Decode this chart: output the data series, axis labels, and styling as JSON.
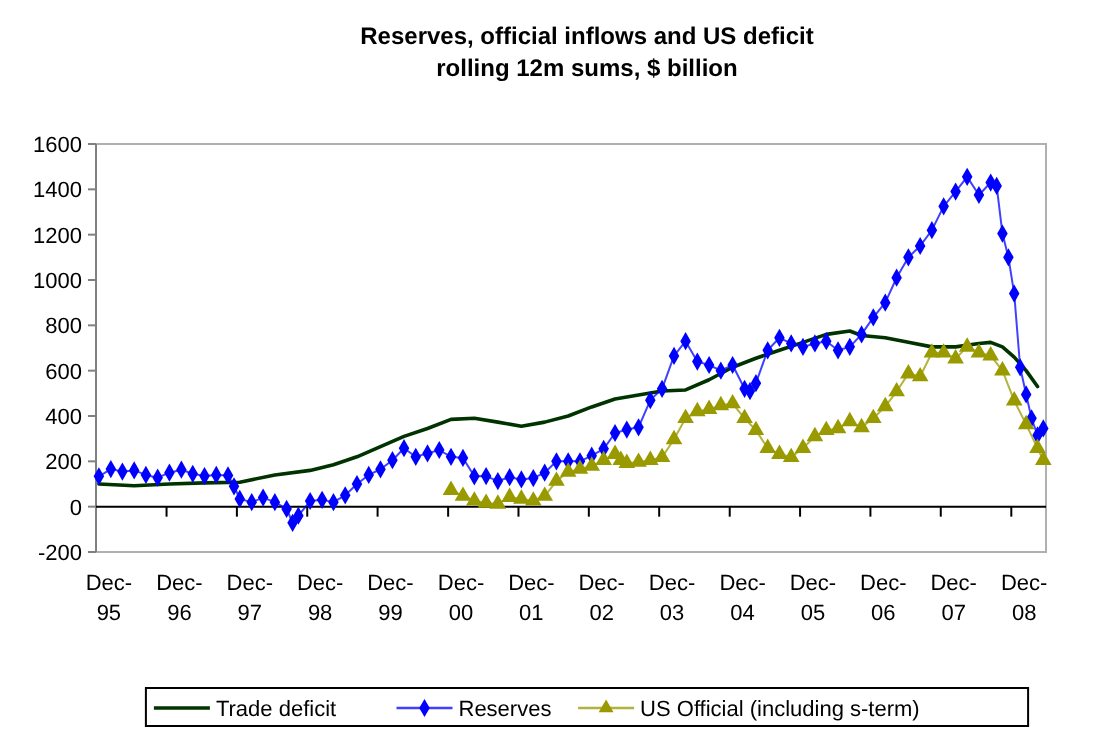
{
  "chart_data": {
    "type": "line",
    "title": "Reserves, official inflows and US deficit",
    "subtitle": "rolling 12m sums, $ billion",
    "xlim": [
      "1995-11-16",
      "2009-05-15"
    ],
    "xticks": [
      {
        "value": "1995-12",
        "label": "Dec-95"
      },
      {
        "value": "1996-12",
        "label": "Dec-96"
      },
      {
        "value": "1997-12",
        "label": "Dec-97"
      },
      {
        "value": "1998-12",
        "label": "Dec-98"
      },
      {
        "value": "1999-12",
        "label": "Dec-99"
      },
      {
        "value": "2000-12",
        "label": "Dec-00"
      },
      {
        "value": "2001-12",
        "label": "Dec-01"
      },
      {
        "value": "2002-12",
        "label": "Dec-02"
      },
      {
        "value": "2003-12",
        "label": "Dec-03"
      },
      {
        "value": "2004-12",
        "label": "Dec-04"
      },
      {
        "value": "2005-12",
        "label": "Dec-05"
      },
      {
        "value": "2006-12",
        "label": "Dec-06"
      },
      {
        "value": "2007-12",
        "label": "Dec-07"
      },
      {
        "value": "2008-12",
        "label": "Dec-08"
      },
      {
        "value": "1996-11-16",
        "label": null
      },
      {
        "value": "1997-11-16",
        "label": null
      },
      {
        "value": "1998-11-16",
        "label": null
      },
      {
        "value": "1999-11-16",
        "label": null
      },
      {
        "value": "2000-11-16",
        "label": null
      },
      {
        "value": "2001-11-16",
        "label": null
      },
      {
        "value": "2002-11-16",
        "label": null
      },
      {
        "value": "2003-11-16",
        "label": null
      },
      {
        "value": "2004-11-16",
        "label": null
      },
      {
        "value": "2005-11-16",
        "label": null
      },
      {
        "value": "2006-11-16",
        "label": null
      },
      {
        "value": "2007-11-16",
        "label": null
      },
      {
        "value": "2008-11-16",
        "label": null
      }
    ],
    "ylim": [
      -200,
      1600
    ],
    "yticks": [
      -200,
      0,
      200,
      400,
      600,
      800,
      1000,
      1200,
      1400,
      1600
    ],
    "legend": "bottom",
    "series": [
      {
        "name": "Trade deficit",
        "color": "#003300",
        "marker": "none",
        "x": [
          "1995-12",
          "1996-06",
          "1996-12",
          "1997-06",
          "1997-12",
          "1998-06",
          "1998-12",
          "1999-04",
          "1999-08",
          "1999-12",
          "2000-04",
          "2000-08",
          "2000-12",
          "2001-04",
          "2001-08",
          "2001-12",
          "2002-04",
          "2002-08",
          "2002-12",
          "2003-04",
          "2003-12",
          "2004-04",
          "2004-08",
          "2004-12",
          "2005-04",
          "2005-08",
          "2005-12",
          "2006-04",
          "2006-08",
          "2006-10",
          "2007-02",
          "2007-06",
          "2007-10",
          "2008-02",
          "2008-06",
          "2008-08",
          "2008-10",
          "2008-12",
          "2009-02",
          "2009-04"
        ],
        "values": [
          100,
          92,
          100,
          105,
          108,
          140,
          160,
          185,
          220,
          265,
          310,
          345,
          385,
          390,
          373,
          355,
          373,
          400,
          440,
          475,
          510,
          515,
          560,
          615,
          655,
          690,
          725,
          760,
          775,
          755,
          745,
          725,
          705,
          705,
          720,
          725,
          705,
          660,
          600,
          530
        ]
      },
      {
        "name": "Reserves",
        "color": "#0000ff",
        "marker": "diamond",
        "x": [
          "1995-12",
          "1996-02",
          "1996-04",
          "1996-06",
          "1996-08",
          "1996-10",
          "1996-12",
          "1997-02",
          "1997-04",
          "1997-06",
          "1997-08",
          "1997-10",
          "1997-11",
          "1997-12",
          "1998-02",
          "1998-04",
          "1998-06",
          "1998-08",
          "1998-09",
          "1998-10",
          "1998-12",
          "1999-02",
          "1999-04",
          "1999-06",
          "1999-08",
          "1999-10",
          "1999-12",
          "2000-02",
          "2000-04",
          "2000-06",
          "2000-08",
          "2000-10",
          "2000-12",
          "2001-02",
          "2001-04",
          "2001-06",
          "2001-08",
          "2001-10",
          "2001-12",
          "2002-02",
          "2002-04",
          "2002-06",
          "2002-08",
          "2002-10",
          "2002-12",
          "2003-02",
          "2003-04",
          "2003-06",
          "2003-08",
          "2003-10",
          "2003-12",
          "2004-02",
          "2004-04",
          "2004-06",
          "2004-08",
          "2004-10",
          "2004-12",
          "2005-02",
          "2005-03",
          "2005-04",
          "2005-06",
          "2005-08",
          "2005-10",
          "2005-12",
          "2006-02",
          "2006-04",
          "2006-06",
          "2006-08",
          "2006-10",
          "2006-12",
          "2007-02",
          "2007-04",
          "2007-06",
          "2007-08",
          "2007-10",
          "2007-12",
          "2008-02",
          "2008-04",
          "2008-06",
          "2008-08",
          "2008-09",
          "2008-10",
          "2008-11",
          "2008-12",
          "2009-01",
          "2009-02",
          "2009-03",
          "2009-04",
          "2009-05"
        ],
        "values": [
          134,
          166,
          155,
          160,
          140,
          128,
          150,
          163,
          145,
          135,
          140,
          138,
          90,
          34,
          20,
          40,
          20,
          -10,
          -71,
          -40,
          25,
          30,
          20,
          50,
          100,
          140,
          165,
          205,
          258,
          220,
          235,
          250,
          220,
          215,
          134,
          135,
          113,
          130,
          120,
          126,
          150,
          200,
          200,
          200,
          225,
          255,
          325,
          340,
          350,
          470,
          520,
          665,
          730,
          640,
          625,
          600,
          625,
          520,
          510,
          545,
          690,
          745,
          720,
          705,
          720,
          730,
          690,
          705,
          760,
          835,
          900,
          1010,
          1100,
          1150,
          1220,
          1325,
          1390,
          1455,
          1375,
          1430,
          1415,
          1205,
          1100,
          940,
          615,
          495,
          390,
          315,
          345
        ]
      },
      {
        "name": "US Official (including s-term)",
        "color": "#999900",
        "marker": "triangle",
        "x": [
          "2000-12",
          "2001-02",
          "2001-04",
          "2001-06",
          "2001-08",
          "2001-10",
          "2001-12",
          "2002-02",
          "2002-04",
          "2002-06",
          "2002-08",
          "2002-10",
          "2002-12",
          "2003-02",
          "2003-04",
          "2003-05",
          "2003-06",
          "2003-08",
          "2003-10",
          "2003-12",
          "2004-02",
          "2004-04",
          "2004-06",
          "2004-08",
          "2004-10",
          "2004-12",
          "2005-02",
          "2005-04",
          "2005-06",
          "2005-08",
          "2005-10",
          "2005-12",
          "2006-02",
          "2006-04",
          "2006-06",
          "2006-08",
          "2006-10",
          "2006-12",
          "2007-02",
          "2007-04",
          "2007-06",
          "2007-08",
          "2007-10",
          "2007-12",
          "2008-02",
          "2008-04",
          "2008-06",
          "2008-08",
          "2008-10",
          "2008-12",
          "2009-02",
          "2009-04",
          "2009-05"
        ],
        "values": [
          73,
          47,
          26,
          16,
          12,
          42,
          34,
          26,
          47,
          113,
          153,
          166,
          180,
          205,
          232,
          205,
          192,
          197,
          205,
          218,
          297,
          390,
          420,
          430,
          447,
          455,
          390,
          337,
          258,
          232,
          218,
          258,
          310,
          337,
          345,
          376,
          350,
          390,
          442,
          508,
          587,
          574,
          679,
          679,
          653,
          705,
          679,
          666,
          600,
          468,
          363,
          258,
          205
        ]
      }
    ]
  }
}
